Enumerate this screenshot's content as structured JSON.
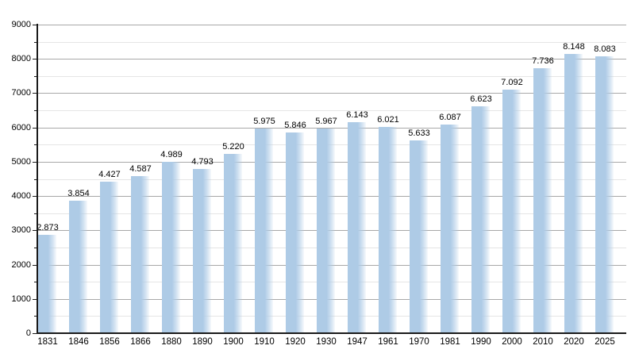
{
  "chart_data": {
    "type": "bar",
    "title": "",
    "xlabel": "",
    "ylabel": "",
    "categories": [
      "1831",
      "1846",
      "1856",
      "1866",
      "1880",
      "1890",
      "1900",
      "1910",
      "1920",
      "1930",
      "1947",
      "1961",
      "1970",
      "1981",
      "1990",
      "2000",
      "2010",
      "2020",
      "2025"
    ],
    "values": [
      2873,
      3854,
      4427,
      4587,
      4989,
      4793,
      5220,
      5975,
      5846,
      5967,
      6143,
      6021,
      5633,
      6087,
      6623,
      7092,
      7736,
      8148,
      8083
    ],
    "value_labels": [
      "2.873",
      "3.854",
      "4.427",
      "4.587",
      "4.989",
      "4.793",
      "5.220",
      "5.975",
      "5.846",
      "5.967",
      "6.143",
      "6.021",
      "5.633",
      "6.087",
      "6.623",
      "7.092",
      "7.736",
      "8.148",
      "8.083"
    ],
    "ylim": [
      0,
      9000
    ],
    "y_major_step": 1000,
    "y_minor_step": 500,
    "y_tick_labels": [
      "0",
      "1000",
      "2000",
      "3000",
      "4000",
      "5000",
      "6000",
      "7000",
      "8000",
      "9000"
    ],
    "grid": true,
    "legend_position": "none",
    "colors": {
      "bar": "#aecbe6",
      "grid_major": "#a8a8a8",
      "grid_minor": "#e5e5e5",
      "axis": "#1a1a1a",
      "text": "#000000",
      "background": "#ffffff"
    }
  }
}
